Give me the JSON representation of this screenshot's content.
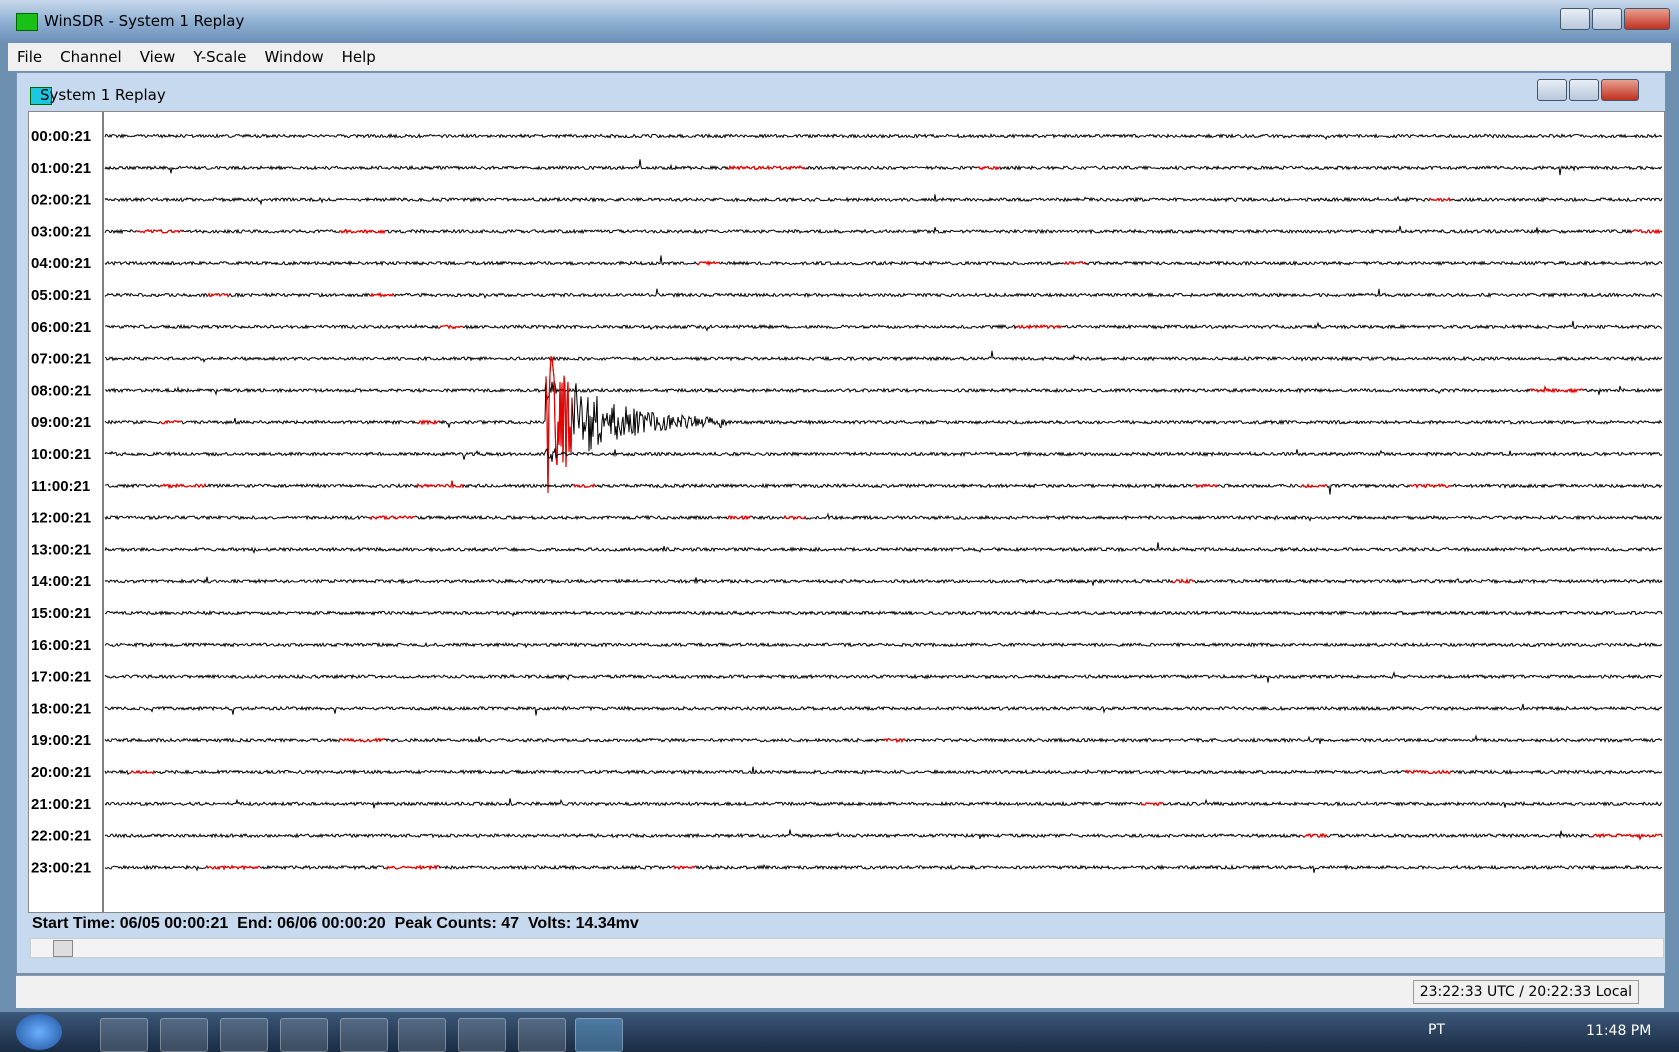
{
  "window": {
    "title": "WinSDR - System 1 Replay",
    "menu": [
      "File",
      "Channel",
      "View",
      "Y-Scale",
      "Window",
      "Help"
    ]
  },
  "child_window": {
    "title": "System 1 Replay",
    "row_labels": [
      "00:00:21",
      "01:00:21",
      "02:00:21",
      "03:00:21",
      "04:00:21",
      "05:00:21",
      "06:00:21",
      "07:00:21",
      "08:00:21",
      "09:00:21",
      "10:00:21",
      "11:00:21",
      "12:00:21",
      "13:00:21",
      "14:00:21",
      "15:00:21",
      "16:00:21",
      "17:00:21",
      "18:00:21",
      "19:00:21",
      "20:00:21",
      "21:00:21",
      "22:00:21",
      "23:00:21"
    ],
    "status_line": "Start Time: 06/05 00:00:21  End: 06/06 00:00:20  Peak Counts: 47  Volts: 14.34mv"
  },
  "status_bar": {
    "time": "23:22:33 UTC / 20:22:33 Local"
  },
  "taskbar": {
    "language": "PT",
    "clock": "11:48 PM"
  }
}
